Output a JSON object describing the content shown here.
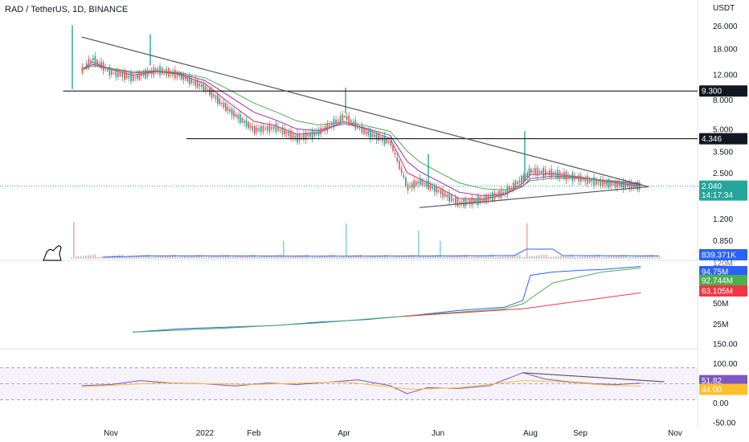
{
  "header": {
    "title": "RAD / TetherUS, 1D, BINANCE"
  },
  "colors": {
    "up": "#26a69a",
    "down": "#ef5350",
    "ema_fast": "#e91e63",
    "ema_mid": "#9c27b0",
    "ema_slow": "#4caf50",
    "obv": "#2962ff",
    "obv_ma": "#4caf50",
    "obv_ma_slow": "#f23645",
    "rsi": "#7e57c2",
    "rsi_ma": "#fbc02d",
    "trend": "#555555",
    "support": "#000000"
  },
  "chart_data": [
    {
      "type": "line",
      "pane": "price",
      "y_scale": "log",
      "y_unit": "USDT",
      "x_ticks": [
        "Nov",
        "2022",
        "Feb",
        "Apr",
        "Jun",
        "Aug",
        "Sep",
        "Nov"
      ],
      "y_ticks": [
        26.0,
        18.0,
        12.0,
        8.0,
        5.0,
        3.5,
        2.5,
        1.2,
        0.85
      ],
      "y_tick_labels": [
        "26.000",
        "18.000",
        "12.000",
        "8.000",
        "5.000",
        "3.500",
        "2.500",
        "1.200",
        "0.850"
      ],
      "series": [
        {
          "x": [
            "2021-10-13",
            "2021-10-20",
            "2021-11-01",
            "2021-11-15",
            "2021-12-01",
            "2021-12-15",
            "2022-01-01",
            "2022-01-15",
            "2022-02-01",
            "2022-02-15",
            "2022-03-01",
            "2022-03-15",
            "2022-04-01",
            "2022-04-15",
            "2022-05-01",
            "2022-05-12",
            "2022-05-20",
            "2022-06-01",
            "2022-06-15",
            "2022-07-01",
            "2022-07-15",
            "2022-07-27",
            "2022-08-01",
            "2022-08-15",
            "2022-09-01",
            "2022-09-15",
            "2022-10-01",
            "2022-10-10"
          ],
          "values": [
            13.0,
            15.5,
            12.5,
            11.5,
            13.0,
            12.0,
            9.8,
            7.0,
            5.0,
            5.2,
            4.4,
            4.8,
            6.2,
            4.8,
            4.1,
            2.0,
            2.2,
            1.9,
            1.55,
            1.65,
            1.85,
            2.3,
            2.6,
            2.5,
            2.3,
            2.15,
            2.05,
            2.04
          ]
        }
      ],
      "levels": [
        {
          "value": 9.3,
          "label": "9.300",
          "start": "2021-10-01"
        },
        {
          "value": 4.346,
          "label": "4.346",
          "start": "2021-12-20"
        }
      ],
      "trendlines": [
        {
          "from": [
            "2021-10-13",
            22.0
          ],
          "to": [
            "2022-10-15",
            2.02
          ]
        },
        {
          "from": [
            "2022-05-20",
            1.45
          ],
          "to": [
            "2022-10-15",
            2.02
          ]
        }
      ],
      "current_price": {
        "value": 2.04,
        "label": "2.040",
        "countdown": "14:17:34"
      }
    },
    {
      "type": "bar",
      "pane": "volume",
      "current_label": "839.371K"
    },
    {
      "type": "line",
      "pane": "obv",
      "y_ticks": [
        50,
        25
      ],
      "y_tick_labels": [
        "50M",
        "25M"
      ],
      "series": [
        {
          "name": "OBV",
          "x": [
            "2021-11-15",
            "2021-12-15",
            "2022-01-15",
            "2022-02-15",
            "2022-03-15",
            "2022-04-15",
            "2022-05-15",
            "2022-06-15",
            "2022-07-15",
            "2022-07-27",
            "2022-08-01",
            "2022-08-15",
            "2022-09-01",
            "2022-09-15",
            "2022-10-10"
          ],
          "values": [
            16,
            20,
            22,
            24,
            28,
            31,
            36,
            42,
            46,
            54,
            84,
            88,
            90,
            91,
            94.7
          ]
        },
        {
          "name": "OBV MA",
          "x": [
            "2021-11-15",
            "2022-01-15",
            "2022-03-15",
            "2022-05-15",
            "2022-07-15",
            "2022-07-27",
            "2022-08-15",
            "2022-09-15",
            "2022-10-10"
          ],
          "values": [
            16,
            21,
            27,
            36,
            44,
            50,
            75,
            88,
            92.744
          ]
        },
        {
          "name": "OBV MA Slow",
          "x": [
            "2022-05-10",
            "2022-07-27",
            "2022-10-10"
          ],
          "values": [
            35,
            44,
            63.105
          ]
        }
      ],
      "current_labels": [
        "94.75M",
        "92.744M",
        "63.105M"
      ]
    },
    {
      "type": "line",
      "pane": "rsi",
      "y_ticks": [
        150,
        100,
        50,
        0,
        -50
      ],
      "y_tick_labels": [
        "150.00",
        "100.00",
        "50.00",
        "0.00",
        "-50.00"
      ],
      "band": [
        30,
        70
      ],
      "series": [
        {
          "name": "RSI",
          "x": [
            "2021-10-13",
            "2021-11-01",
            "2021-11-20",
            "2021-12-10",
            "2022-01-01",
            "2022-01-20",
            "2022-02-10",
            "2022-03-01",
            "2022-03-25",
            "2022-04-10",
            "2022-05-01",
            "2022-05-12",
            "2022-05-25",
            "2022-06-15",
            "2022-07-05",
            "2022-07-27",
            "2022-08-10",
            "2022-08-25",
            "2022-09-10",
            "2022-09-25",
            "2022-10-10"
          ],
          "values": [
            45,
            48,
            58,
            52,
            50,
            44,
            52,
            48,
            55,
            60,
            45,
            25,
            40,
            38,
            45,
            78,
            62,
            55,
            50,
            48,
            51.82
          ]
        },
        {
          "name": "RSI MA",
          "x": [
            "2021-10-13",
            "2021-12-01",
            "2022-02-01",
            "2022-04-01",
            "2022-05-15",
            "2022-06-15",
            "2022-07-27",
            "2022-08-20",
            "2022-09-20",
            "2022-10-10"
          ],
          "values": [
            42,
            52,
            48,
            55,
            36,
            40,
            58,
            55,
            46,
            44.0
          ]
        }
      ],
      "trendline": {
        "from": [
          "2022-07-27",
          78
        ],
        "to": [
          "2022-10-25",
          55
        ]
      },
      "current_labels": [
        "51.82",
        "44.00"
      ]
    }
  ]
}
